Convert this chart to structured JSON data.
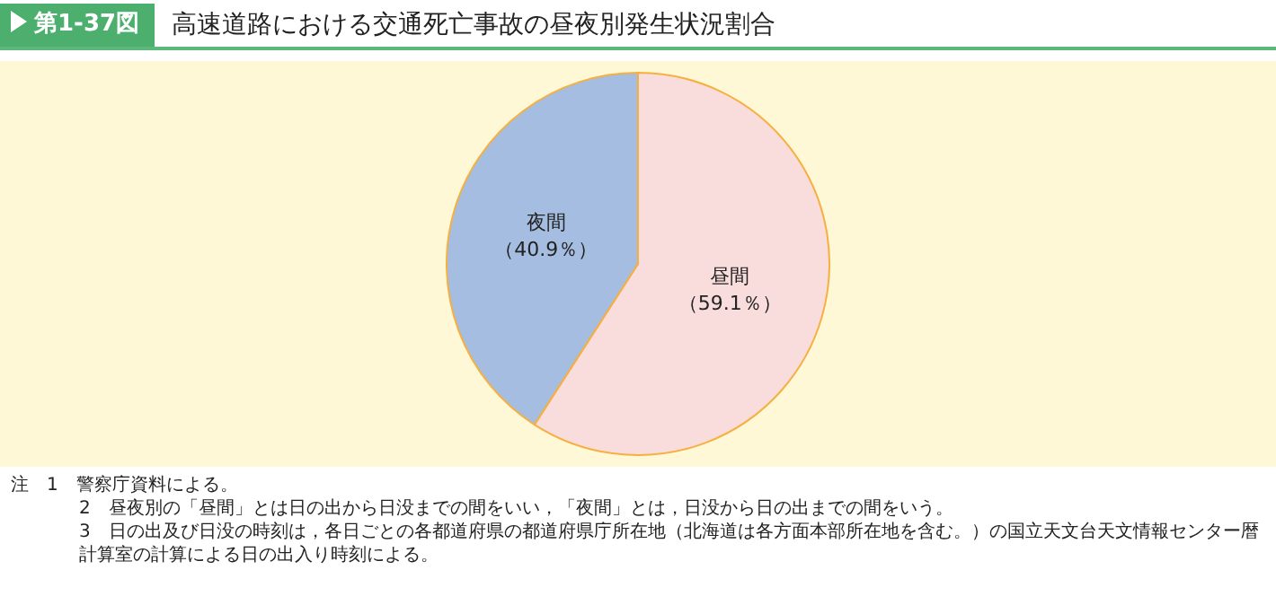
{
  "chart_data": {
    "type": "pie",
    "title": "高速道路における交通死亡事故の昼夜別発生状況割合",
    "subtitle": "第1-37図",
    "categories": [
      "昼間",
      "夜間"
    ],
    "values": [
      59.1,
      40.9
    ],
    "colors": [
      "#f9dcdc",
      "#a4bde0"
    ],
    "value_labels": [
      "（59.1％）",
      "（40.9％）"
    ],
    "legend": false,
    "annotations": [
      "注　1　警察庁資料による。",
      "2　昼夜別の「昼間」とは日の出から日没までの間をいい，「夜間」とは，日没から日の出までの間をいう。",
      "3　日の出及び日没の時刻は，各日ごとの各都道府県の都道府県庁所在地（北海道は各方面本部所在地を含む。）の国立天文台天文情報センター暦計算室の計算による日の出入り時刻による。"
    ]
  }
}
